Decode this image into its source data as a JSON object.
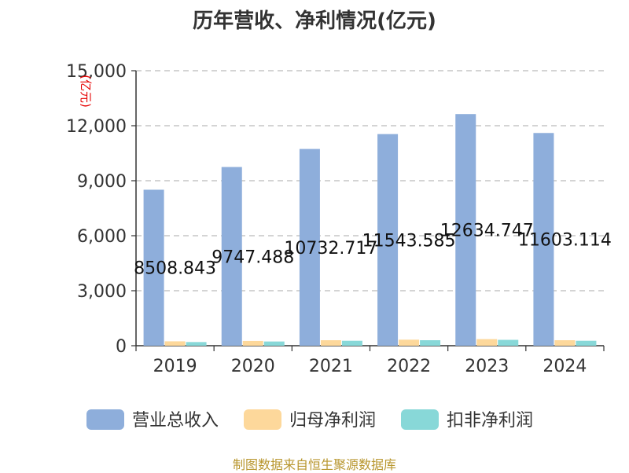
{
  "chart_data": {
    "type": "bar",
    "title": "历年营收、净利情况(亿元)",
    "unit_label": "(亿元)",
    "categories": [
      "2019",
      "2020",
      "2021",
      "2022",
      "2023",
      "2024"
    ],
    "series": [
      {
        "name": "营业总收入",
        "color": "#8eaedb",
        "values": [
          8508.843,
          9747.488,
          10732.717,
          11543.585,
          12634.747,
          11603.114
        ],
        "labels": [
          "8508.843",
          "9747.488",
          "10732.717",
          "11543.585",
          "12634.747",
          "11603.114"
        ]
      },
      {
        "name": "归母净利润",
        "color": "#fdd89b",
        "values": [
          240,
          260,
          300,
          330,
          360,
          300
        ]
      },
      {
        "name": "扣非净利润",
        "color": "#88d8d8",
        "values": [
          200,
          230,
          270,
          300,
          320,
          270
        ]
      }
    ],
    "yticks": [
      "0",
      "3,000",
      "6,000",
      "9,000",
      "12,000",
      "15,000"
    ],
    "ylim": [
      0,
      15000
    ],
    "grid": true,
    "legend_position": "bottom"
  },
  "source": "制图数据来自恒生聚源数据库"
}
